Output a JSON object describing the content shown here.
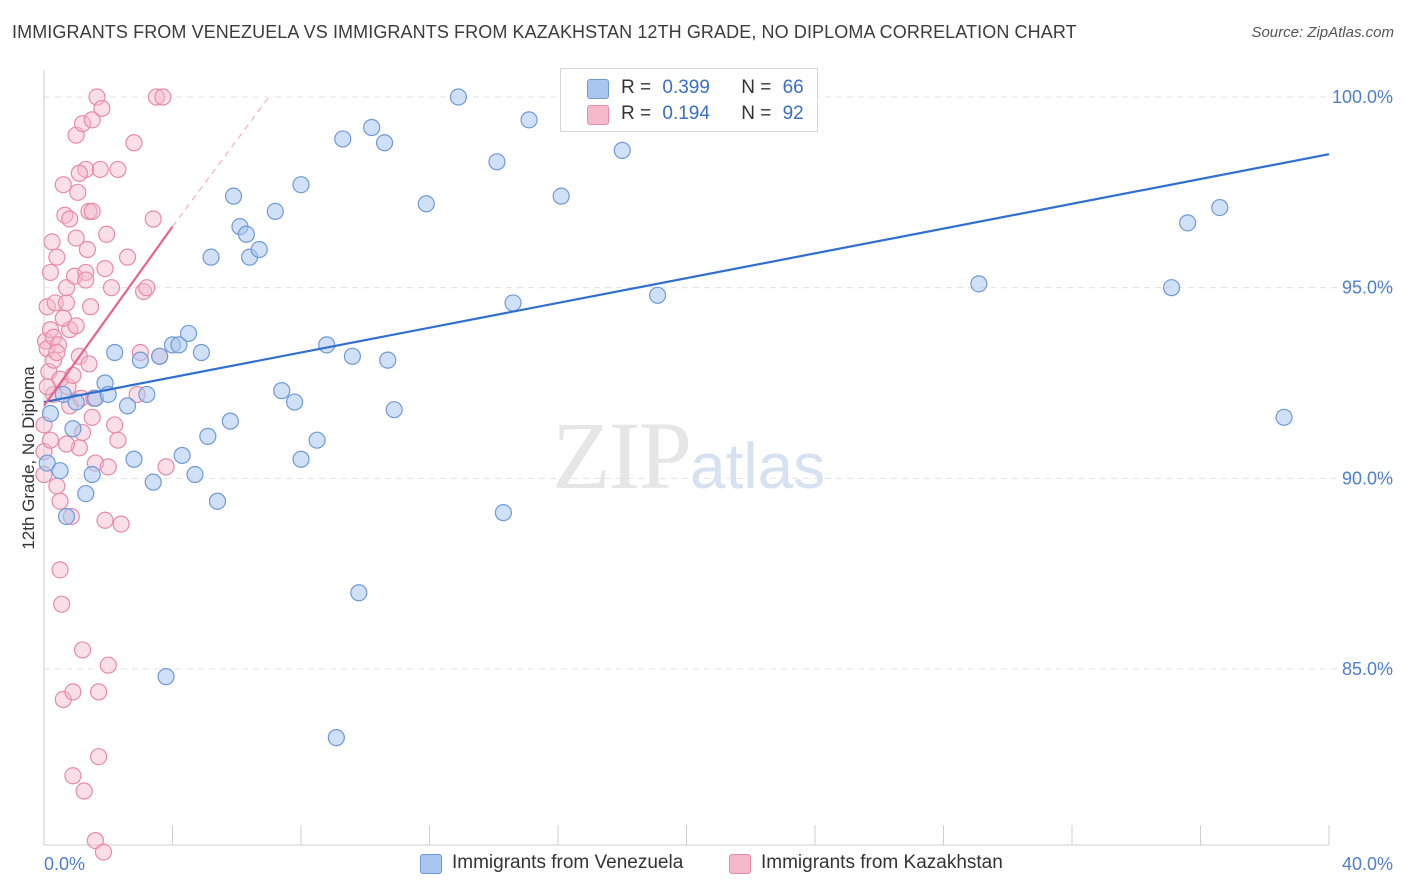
{
  "header": {
    "title": "IMMIGRANTS FROM VENEZUELA VS IMMIGRANTS FROM KAZAKHSTAN 12TH GRADE, NO DIPLOMA CORRELATION CHART",
    "source": "Source: ZipAtlas.com"
  },
  "watermark": {
    "zip": "ZIP",
    "atlas": "atlas"
  },
  "legend": {
    "rows": [
      {
        "r_label": "R =",
        "r_value": "0.399",
        "n_label": "N =",
        "n_value": "66"
      },
      {
        "r_label": "R =",
        "r_value": "0.194",
        "n_label": "N =",
        "n_value": "92"
      }
    ]
  },
  "bottom_legend": {
    "venezuela": "Immigrants from Venezuela",
    "kazakhstan": "Immigrants from Kazakhstan"
  },
  "colors": {
    "venezuela_fill": "#a9c6ee",
    "venezuela_stroke": "#6f9ad6",
    "venezuela_line": "#2f6fcf",
    "kazakhstan_fill": "#f5b9cc",
    "kazakhstan_stroke": "#e88aa8",
    "kazakhstan_line": "#e8628e",
    "tick_label": "#4f7fc9"
  },
  "chart_data": {
    "type": "scatter",
    "title": "IMMIGRANTS FROM VENEZUELA VS IMMIGRANTS FROM KAZAKHSTAN 12TH GRADE, NO DIPLOMA CORRELATION CHART",
    "xlabel": "",
    "ylabel": "12th Grade, No Diploma",
    "xlim": [
      0,
      40
    ],
    "ylim": [
      80,
      100.5
    ],
    "x_tick_labels": [
      "0.0%",
      "40.0%"
    ],
    "y_ticks": [
      85,
      90,
      95,
      100
    ],
    "y_tick_labels": [
      "85.0%",
      "90.0%",
      "95.0%",
      "100.0%"
    ],
    "grid": "horizontal dashed",
    "legend_position": "top-center",
    "series": [
      {
        "name": "Immigrants from Venezuela",
        "R": 0.399,
        "N": 66,
        "trend": {
          "x": [
            0,
            40
          ],
          "y": [
            92.0,
            98.5
          ]
        },
        "points": [
          [
            0.1,
            90.4
          ],
          [
            0.2,
            91.7
          ],
          [
            0.5,
            90.2
          ],
          [
            0.6,
            92.2
          ],
          [
            0.7,
            89.0
          ],
          [
            0.9,
            91.3
          ],
          [
            1.3,
            89.6
          ],
          [
            1.5,
            90.1
          ],
          [
            1.6,
            92.1
          ],
          [
            1.9,
            92.5
          ],
          [
            2.0,
            92.2
          ],
          [
            2.2,
            93.3
          ],
          [
            2.6,
            91.9
          ],
          [
            2.8,
            90.5
          ],
          [
            3.0,
            93.1
          ],
          [
            3.2,
            92.2
          ],
          [
            3.4,
            89.9
          ],
          [
            3.6,
            93.2
          ],
          [
            3.8,
            84.8
          ],
          [
            4.0,
            93.5
          ],
          [
            4.2,
            93.5
          ],
          [
            4.3,
            90.6
          ],
          [
            4.5,
            93.8
          ],
          [
            4.7,
            90.1
          ],
          [
            4.9,
            93.3
          ],
          [
            5.1,
            91.1
          ],
          [
            5.2,
            95.8
          ],
          [
            5.4,
            89.4
          ],
          [
            5.8,
            91.5
          ],
          [
            5.9,
            97.4
          ],
          [
            6.1,
            96.6
          ],
          [
            6.3,
            96.4
          ],
          [
            6.4,
            95.8
          ],
          [
            6.7,
            96.0
          ],
          [
            7.2,
            97.0
          ],
          [
            7.4,
            92.3
          ],
          [
            7.8,
            92.0
          ],
          [
            8.0,
            97.7
          ],
          [
            8.0,
            90.5
          ],
          [
            8.5,
            91.0
          ],
          [
            8.8,
            93.5
          ],
          [
            9.1,
            83.2
          ],
          [
            9.3,
            98.9
          ],
          [
            9.6,
            93.2
          ],
          [
            9.8,
            87.0
          ],
          [
            10.2,
            99.2
          ],
          [
            10.6,
            98.8
          ],
          [
            10.7,
            93.1
          ],
          [
            10.9,
            91.8
          ],
          [
            11.9,
            97.2
          ],
          [
            12.9,
            100.0
          ],
          [
            14.1,
            98.3
          ],
          [
            14.3,
            89.1
          ],
          [
            14.6,
            94.6
          ],
          [
            15.1,
            99.4
          ],
          [
            16.1,
            97.4
          ],
          [
            17.1,
            99.9
          ],
          [
            18.0,
            98.6
          ],
          [
            19.1,
            94.8
          ],
          [
            20.1,
            100.0
          ],
          [
            29.1,
            95.1
          ],
          [
            35.1,
            95.0
          ],
          [
            35.6,
            96.7
          ],
          [
            36.6,
            97.1
          ],
          [
            38.6,
            91.6
          ],
          [
            1.0,
            92.0
          ]
        ]
      },
      {
        "name": "Immigrants from Kazakhstan",
        "R": 0.194,
        "N": 92,
        "trend": {
          "x": [
            0,
            4.0
          ],
          "y": [
            91.9,
            96.6
          ]
        },
        "trend_extension": {
          "x": [
            4.0,
            7.0
          ],
          "y": [
            96.6,
            100.0
          ]
        },
        "points": [
          [
            0.0,
            91.4
          ],
          [
            0.0,
            90.7
          ],
          [
            0.0,
            90.1
          ],
          [
            0.05,
            93.6
          ],
          [
            0.1,
            94.5
          ],
          [
            0.1,
            93.4
          ],
          [
            0.15,
            92.8
          ],
          [
            0.2,
            93.9
          ],
          [
            0.2,
            95.4
          ],
          [
            0.25,
            96.2
          ],
          [
            0.3,
            92.2
          ],
          [
            0.3,
            93.7
          ],
          [
            0.35,
            94.6
          ],
          [
            0.4,
            95.8
          ],
          [
            0.4,
            89.8
          ],
          [
            0.45,
            93.5
          ],
          [
            0.5,
            92.6
          ],
          [
            0.5,
            87.6
          ],
          [
            0.55,
            86.7
          ],
          [
            0.6,
            84.2
          ],
          [
            0.6,
            97.7
          ],
          [
            0.65,
            96.9
          ],
          [
            0.7,
            94.6
          ],
          [
            0.7,
            95.0
          ],
          [
            0.75,
            92.4
          ],
          [
            0.8,
            91.9
          ],
          [
            0.8,
            93.9
          ],
          [
            0.85,
            89.0
          ],
          [
            0.9,
            84.4
          ],
          [
            0.9,
            82.2
          ],
          [
            0.95,
            95.3
          ],
          [
            1.0,
            99.0
          ],
          [
            1.0,
            96.3
          ],
          [
            1.05,
            97.5
          ],
          [
            1.1,
            90.8
          ],
          [
            1.1,
            93.2
          ],
          [
            1.15,
            92.1
          ],
          [
            1.2,
            99.3
          ],
          [
            1.2,
            85.5
          ],
          [
            1.25,
            81.8
          ],
          [
            1.3,
            95.4
          ],
          [
            1.3,
            98.1
          ],
          [
            1.35,
            96.0
          ],
          [
            1.4,
            97.0
          ],
          [
            1.45,
            94.5
          ],
          [
            1.5,
            91.6
          ],
          [
            1.5,
            99.4
          ],
          [
            1.55,
            92.1
          ],
          [
            1.6,
            90.4
          ],
          [
            1.6,
            80.5
          ],
          [
            1.65,
            100.0
          ],
          [
            1.7,
            82.7
          ],
          [
            1.7,
            84.4
          ],
          [
            1.75,
            98.1
          ],
          [
            1.8,
            99.7
          ],
          [
            1.85,
            80.2
          ],
          [
            1.9,
            95.5
          ],
          [
            1.95,
            96.4
          ],
          [
            2.0,
            90.3
          ],
          [
            2.0,
            85.1
          ],
          [
            2.1,
            95.0
          ],
          [
            2.2,
            91.4
          ],
          [
            2.3,
            98.1
          ],
          [
            2.4,
            88.8
          ],
          [
            2.6,
            95.8
          ],
          [
            2.8,
            98.8
          ],
          [
            2.9,
            92.2
          ],
          [
            3.0,
            93.3
          ],
          [
            3.1,
            94.9
          ],
          [
            3.2,
            95.0
          ],
          [
            3.4,
            96.8
          ],
          [
            3.5,
            100.0
          ],
          [
            3.6,
            93.2
          ],
          [
            3.7,
            100.0
          ],
          [
            3.8,
            90.3
          ],
          [
            0.3,
            93.1
          ],
          [
            0.6,
            94.2
          ],
          [
            0.9,
            92.7
          ],
          [
            1.2,
            91.2
          ],
          [
            1.4,
            93.0
          ],
          [
            0.2,
            91.0
          ],
          [
            0.5,
            89.4
          ],
          [
            0.8,
            96.8
          ],
          [
            1.0,
            94.0
          ],
          [
            1.3,
            95.2
          ],
          [
            0.4,
            93.3
          ],
          [
            0.7,
            90.9
          ],
          [
            1.1,
            98.0
          ],
          [
            1.5,
            97.0
          ],
          [
            0.1,
            92.4
          ],
          [
            1.9,
            88.9
          ],
          [
            2.3,
            91.0
          ]
        ]
      }
    ]
  }
}
